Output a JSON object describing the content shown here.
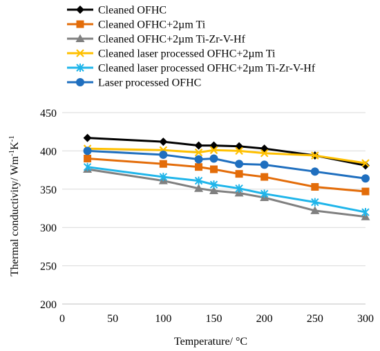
{
  "chart_data": {
    "type": "line",
    "xlabel": "Temperature/ °C",
    "ylabel_main": "Thermal conductivity/ Wm",
    "ylabel_sup1": "-1",
    "ylabel_mid": "K",
    "ylabel_sup2": "-1",
    "xlim": [
      0,
      300
    ],
    "ylim": [
      200,
      450
    ],
    "xticks": [
      "0",
      "50",
      "100",
      "150",
      "200",
      "250",
      "300"
    ],
    "yticks": [
      "200",
      "250",
      "300",
      "350",
      "400",
      "450"
    ],
    "grid": "horizontal",
    "legend_position": "top-left",
    "x": [
      25,
      100,
      135,
      150,
      175,
      200,
      250,
      300
    ],
    "series": [
      {
        "name": "Cleaned OFHC",
        "color": "#000000",
        "marker": "diamond",
        "values": [
          417,
          412,
          407,
          407,
          406,
          403,
          394,
          381
        ]
      },
      {
        "name": "Cleaned OFHC+2µm Ti",
        "color": "#e36c09",
        "marker": "square",
        "values": [
          390,
          383,
          379,
          376,
          370,
          366,
          353,
          347
        ]
      },
      {
        "name": "Cleaned OFHC+2µm Ti-Zr-V-Hf",
        "color": "#808080",
        "marker": "triangle",
        "values": [
          376,
          361,
          351,
          348,
          345,
          339,
          322,
          314
        ]
      },
      {
        "name": "Cleaned laser processed OFHC+2µm Ti",
        "color": "#ffc000",
        "marker": "x",
        "values": [
          403,
          401,
          398,
          401,
          400,
          397,
          394,
          384
        ]
      },
      {
        "name": "Cleaned laser processed OFHC+2µm Ti-Zr-V-Hf",
        "color": "#1fb5ea",
        "marker": "asterisk",
        "values": [
          379,
          366,
          361,
          356,
          351,
          344,
          333,
          320
        ]
      },
      {
        "name": "Laser processed OFHC",
        "color": "#1f6fbf",
        "marker": "circle",
        "values": [
          400,
          395,
          389,
          390,
          383,
          382,
          373,
          364
        ]
      }
    ]
  }
}
